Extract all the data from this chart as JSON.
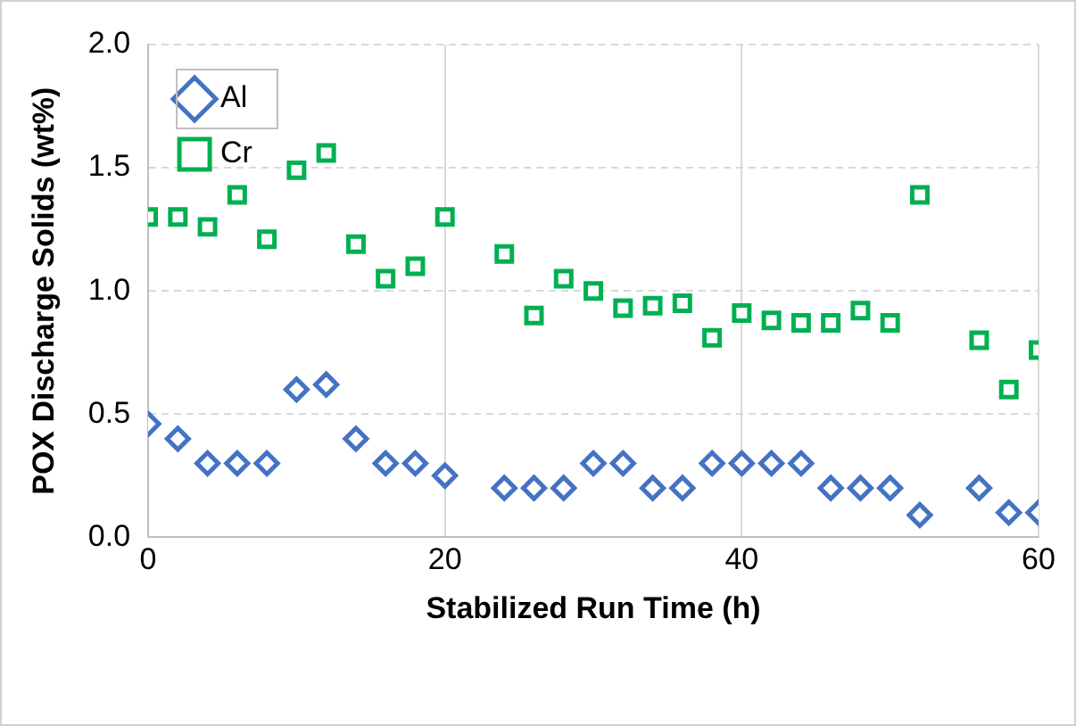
{
  "chart_data": {
    "type": "scatter",
    "xlabel": "Stabilized Run Time (h)",
    "ylabel": "POX Discharge Solids (wt%)",
    "x": [
      0,
      2,
      4,
      6,
      8,
      10,
      12,
      14,
      16,
      18,
      20,
      24,
      26,
      28,
      30,
      32,
      34,
      36,
      38,
      40,
      42,
      44,
      46,
      48,
      50,
      52,
      56,
      58,
      60
    ],
    "series": [
      {
        "name": "Al",
        "color": "#4472c4",
        "marker": "diamond",
        "values": [
          0.46,
          0.4,
          0.3,
          0.3,
          0.3,
          0.6,
          0.62,
          0.4,
          0.3,
          0.3,
          0.25,
          0.2,
          0.2,
          0.2,
          0.3,
          0.3,
          0.2,
          0.2,
          0.3,
          0.3,
          0.3,
          0.3,
          0.2,
          0.2,
          0.2,
          0.09,
          0.2,
          0.1,
          0.1
        ]
      },
      {
        "name": "Cr",
        "color": "#00b050",
        "marker": "square",
        "values": [
          1.3,
          1.3,
          1.26,
          1.39,
          1.21,
          1.49,
          1.56,
          1.19,
          1.05,
          1.1,
          1.3,
          1.15,
          0.9,
          1.05,
          1.0,
          0.93,
          0.94,
          0.95,
          0.81,
          0.91,
          0.88,
          0.87,
          0.87,
          0.92,
          0.87,
          1.39,
          0.8,
          0.6,
          0.76
        ]
      }
    ],
    "xlim": [
      0,
      60
    ],
    "xticks": [
      0,
      20,
      40,
      60
    ],
    "ylim": [
      0,
      2
    ],
    "yticks": [
      {
        "value": 0,
        "label": "0.0"
      },
      {
        "value": 0.5,
        "label": "0.5"
      },
      {
        "value": 1,
        "label": "1.0"
      },
      {
        "value": 1.5,
        "label": "1.5"
      },
      {
        "value": 2,
        "label": "2.0"
      }
    ],
    "grid": true,
    "legend": "top left",
    "line_style": "dashed"
  }
}
